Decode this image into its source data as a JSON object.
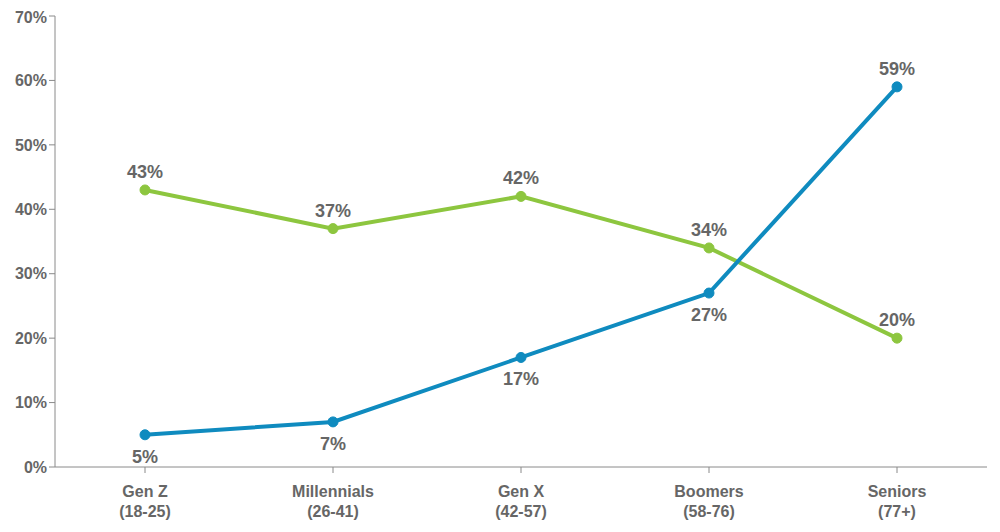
{
  "chart_data": {
    "type": "line",
    "categories": [
      "Gen Z\n(18-25)",
      "Millennials\n(26-41)",
      "Gen X\n(42-57)",
      "Boomers\n(58-76)",
      "Seniors\n(77+)"
    ],
    "series": [
      {
        "color": "#8dc63f",
        "values": [
          43,
          37,
          42,
          34,
          20
        ],
        "value_labels": [
          "43%",
          "37%",
          "42%",
          "34%",
          "20%"
        ]
      },
      {
        "color": "#0f8bbf",
        "values": [
          5,
          7,
          17,
          27,
          59
        ],
        "value_labels": [
          "5%",
          "7%",
          "17%",
          "27%",
          "59%"
        ]
      }
    ],
    "ylim": [
      0,
      70
    ],
    "yticks": [
      {
        "value": 0,
        "label": "0%"
      },
      {
        "value": 10,
        "label": "10%"
      },
      {
        "value": 20,
        "label": "20%"
      },
      {
        "value": 30,
        "label": "30%"
      },
      {
        "value": 40,
        "label": "40%"
      },
      {
        "value": 50,
        "label": "50%"
      },
      {
        "value": 60,
        "label": "60%"
      },
      {
        "value": 70,
        "label": "70%"
      }
    ],
    "grid": false,
    "data_labels": true
  }
}
